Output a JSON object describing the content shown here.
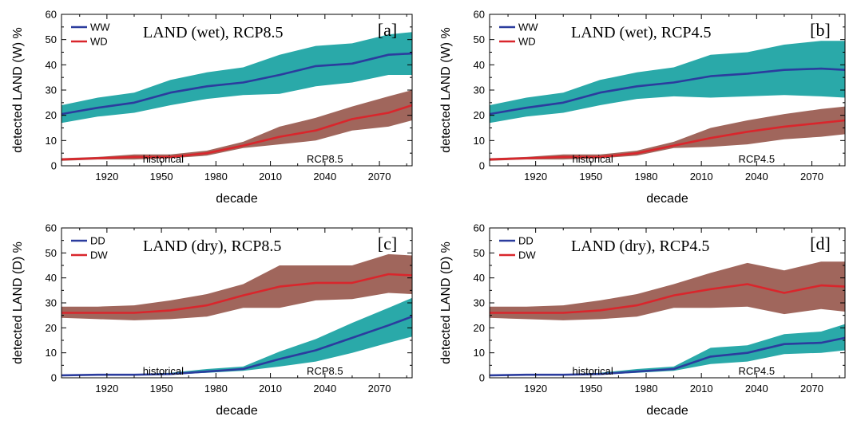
{
  "colors": {
    "blue_line": "#2b3c9e",
    "red_line": "#d9262c",
    "teal_band": "#2aa9a9",
    "brown_band": "#a0665c"
  },
  "chart_data": [
    {
      "type": "area",
      "tag": "[a]",
      "title": "LAND (wet), RCP8.5",
      "xlabel": "decade",
      "ylabel": "detected LAND (W) %",
      "xlim": [
        1895,
        2088
      ],
      "ylim": [
        0,
        60
      ],
      "xticks": [
        "1920",
        "1950",
        "1980",
        "2010",
        "2040",
        "2070"
      ],
      "yticks": [
        "0",
        "10",
        "20",
        "30",
        "40",
        "50",
        "60"
      ],
      "grid": false,
      "legend_position": "top-left",
      "annotations": [
        "historical",
        "RCP8.5"
      ],
      "x": [
        1895,
        1915,
        1935,
        1955,
        1975,
        1995,
        2015,
        2035,
        2055,
        2075,
        2088
      ],
      "series": [
        {
          "name": "WW",
          "color": "blue",
          "band_color": "teal",
          "values": [
            20.5,
            23,
            25,
            29,
            31.5,
            33,
            36,
            39.5,
            40.5,
            44,
            44.5
          ],
          "upper": [
            24,
            27,
            29,
            34,
            37,
            39,
            44,
            47.5,
            48.5,
            52,
            53
          ],
          "lower": [
            17,
            19.5,
            21,
            24,
            26.5,
            28,
            28.5,
            31.5,
            33,
            36,
            36
          ]
        },
        {
          "name": "WD",
          "color": "red",
          "band_color": "brown",
          "values": [
            2.5,
            3,
            3.5,
            3.5,
            5,
            8,
            11.5,
            14,
            18.5,
            21,
            24
          ],
          "upper": [
            3,
            3.5,
            4.5,
            4.5,
            6,
            9.5,
            15.5,
            19,
            23.5,
            27.5,
            30
          ],
          "lower": [
            2,
            2.5,
            2.5,
            3,
            4,
            7,
            8.5,
            10,
            14,
            15.5,
            18
          ]
        }
      ]
    },
    {
      "type": "area",
      "tag": "[b]",
      "title": "LAND (wet), RCP4.5",
      "xlabel": "decade",
      "ylabel": "detected LAND (W) %",
      "xlim": [
        1895,
        2088
      ],
      "ylim": [
        0,
        60
      ],
      "xticks": [
        "1920",
        "1950",
        "1980",
        "2010",
        "2040",
        "2070"
      ],
      "yticks": [
        "0",
        "10",
        "20",
        "30",
        "40",
        "50",
        "60"
      ],
      "grid": false,
      "legend_position": "top-left",
      "annotations": [
        "historical",
        "RCP4.5"
      ],
      "x": [
        1895,
        1915,
        1935,
        1955,
        1975,
        1995,
        2015,
        2035,
        2055,
        2075,
        2088
      ],
      "series": [
        {
          "name": "WW",
          "color": "blue",
          "band_color": "teal",
          "values": [
            20.5,
            23,
            25,
            29,
            31.5,
            33,
            35.5,
            36.5,
            38,
            38.5,
            38
          ],
          "upper": [
            24,
            27,
            29,
            34,
            37,
            39,
            44,
            45,
            48,
            49.5,
            49.5
          ],
          "lower": [
            17,
            19.5,
            21,
            24,
            26.5,
            27.5,
            27,
            27.5,
            28,
            27.5,
            27
          ]
        },
        {
          "name": "WD",
          "color": "red",
          "band_color": "brown",
          "values": [
            2.5,
            3,
            3.5,
            3.5,
            5,
            8,
            11,
            13.5,
            15.5,
            17,
            18
          ],
          "upper": [
            3,
            3.5,
            4.5,
            4.5,
            6,
            9.5,
            15,
            18,
            20.5,
            22.5,
            23.5
          ],
          "lower": [
            2,
            2.5,
            2.5,
            3,
            4,
            7,
            7.5,
            8.5,
            10.5,
            11.5,
            12.5
          ]
        }
      ]
    },
    {
      "type": "area",
      "tag": "[c]",
      "title": "LAND (dry), RCP8.5",
      "xlabel": "decade",
      "ylabel": "detected LAND (D) %",
      "xlim": [
        1895,
        2088
      ],
      "ylim": [
        0,
        60
      ],
      "xticks": [
        "1920",
        "1950",
        "1980",
        "2010",
        "2040",
        "2070"
      ],
      "yticks": [
        "0",
        "10",
        "20",
        "30",
        "40",
        "50",
        "60"
      ],
      "grid": false,
      "legend_position": "top-left",
      "annotations": [
        "historical",
        "RCP8.5"
      ],
      "x": [
        1895,
        1915,
        1935,
        1955,
        1975,
        1995,
        2015,
        2035,
        2055,
        2075,
        2088
      ],
      "series": [
        {
          "name": "DD",
          "color": "blue",
          "band_color": "teal",
          "values": [
            1,
            1.2,
            1.2,
            1.5,
            2.5,
            3.5,
            7.5,
            11,
            16,
            21,
            24.5
          ],
          "upper": [
            1.2,
            1.4,
            1.5,
            2,
            3.5,
            4.5,
            10.5,
            15.5,
            22,
            28,
            32
          ],
          "lower": [
            0.8,
            1,
            1,
            1.2,
            2,
            2.8,
            4.5,
            6.5,
            10,
            14,
            16.5
          ]
        },
        {
          "name": "DW",
          "color": "red",
          "band_color": "brown",
          "values": [
            26,
            26,
            26,
            27,
            29,
            33,
            36.5,
            38,
            38,
            41.5,
            41
          ],
          "upper": [
            28.5,
            28.5,
            29,
            31,
            33.5,
            37.5,
            45,
            45,
            45,
            49.5,
            49
          ],
          "lower": [
            24,
            23.5,
            23,
            23.5,
            24.5,
            28,
            28,
            31,
            31.5,
            34,
            33.5
          ]
        }
      ]
    },
    {
      "type": "area",
      "tag": "[d]",
      "title": "LAND (dry), RCP4.5",
      "xlabel": "decade",
      "ylabel": "detected LAND (D) %",
      "xlim": [
        1895,
        2088
      ],
      "ylim": [
        0,
        60
      ],
      "xticks": [
        "1920",
        "1950",
        "1980",
        "2010",
        "2040",
        "2070"
      ],
      "yticks": [
        "0",
        "10",
        "20",
        "30",
        "40",
        "50",
        "60"
      ],
      "grid": false,
      "legend_position": "top-left",
      "annotations": [
        "historical",
        "RCP4.5"
      ],
      "x": [
        1895,
        1915,
        1935,
        1955,
        1975,
        1995,
        2015,
        2035,
        2055,
        2075,
        2088
      ],
      "series": [
        {
          "name": "DD",
          "color": "blue",
          "band_color": "teal",
          "values": [
            1,
            1.2,
            1.2,
            1.5,
            2.5,
            3.5,
            8.5,
            10,
            13.5,
            14,
            16
          ],
          "upper": [
            1.2,
            1.4,
            1.5,
            2,
            3.5,
            4.5,
            12,
            13,
            17.5,
            18.5,
            21.5
          ],
          "lower": [
            0.8,
            1,
            1,
            1.2,
            2,
            2.8,
            5.5,
            6.5,
            9.5,
            10,
            11
          ]
        },
        {
          "name": "DW",
          "color": "red",
          "band_color": "brown",
          "values": [
            26,
            26,
            26,
            27,
            29,
            33,
            35.5,
            37.5,
            34,
            37,
            36.5
          ],
          "upper": [
            28.5,
            28.5,
            29,
            31,
            33.5,
            37.5,
            42,
            46,
            43,
            46.5,
            46.5
          ],
          "lower": [
            24,
            23.5,
            23,
            23.5,
            24.5,
            28,
            28,
            28.5,
            25.5,
            27.5,
            26.5
          ]
        }
      ]
    }
  ]
}
